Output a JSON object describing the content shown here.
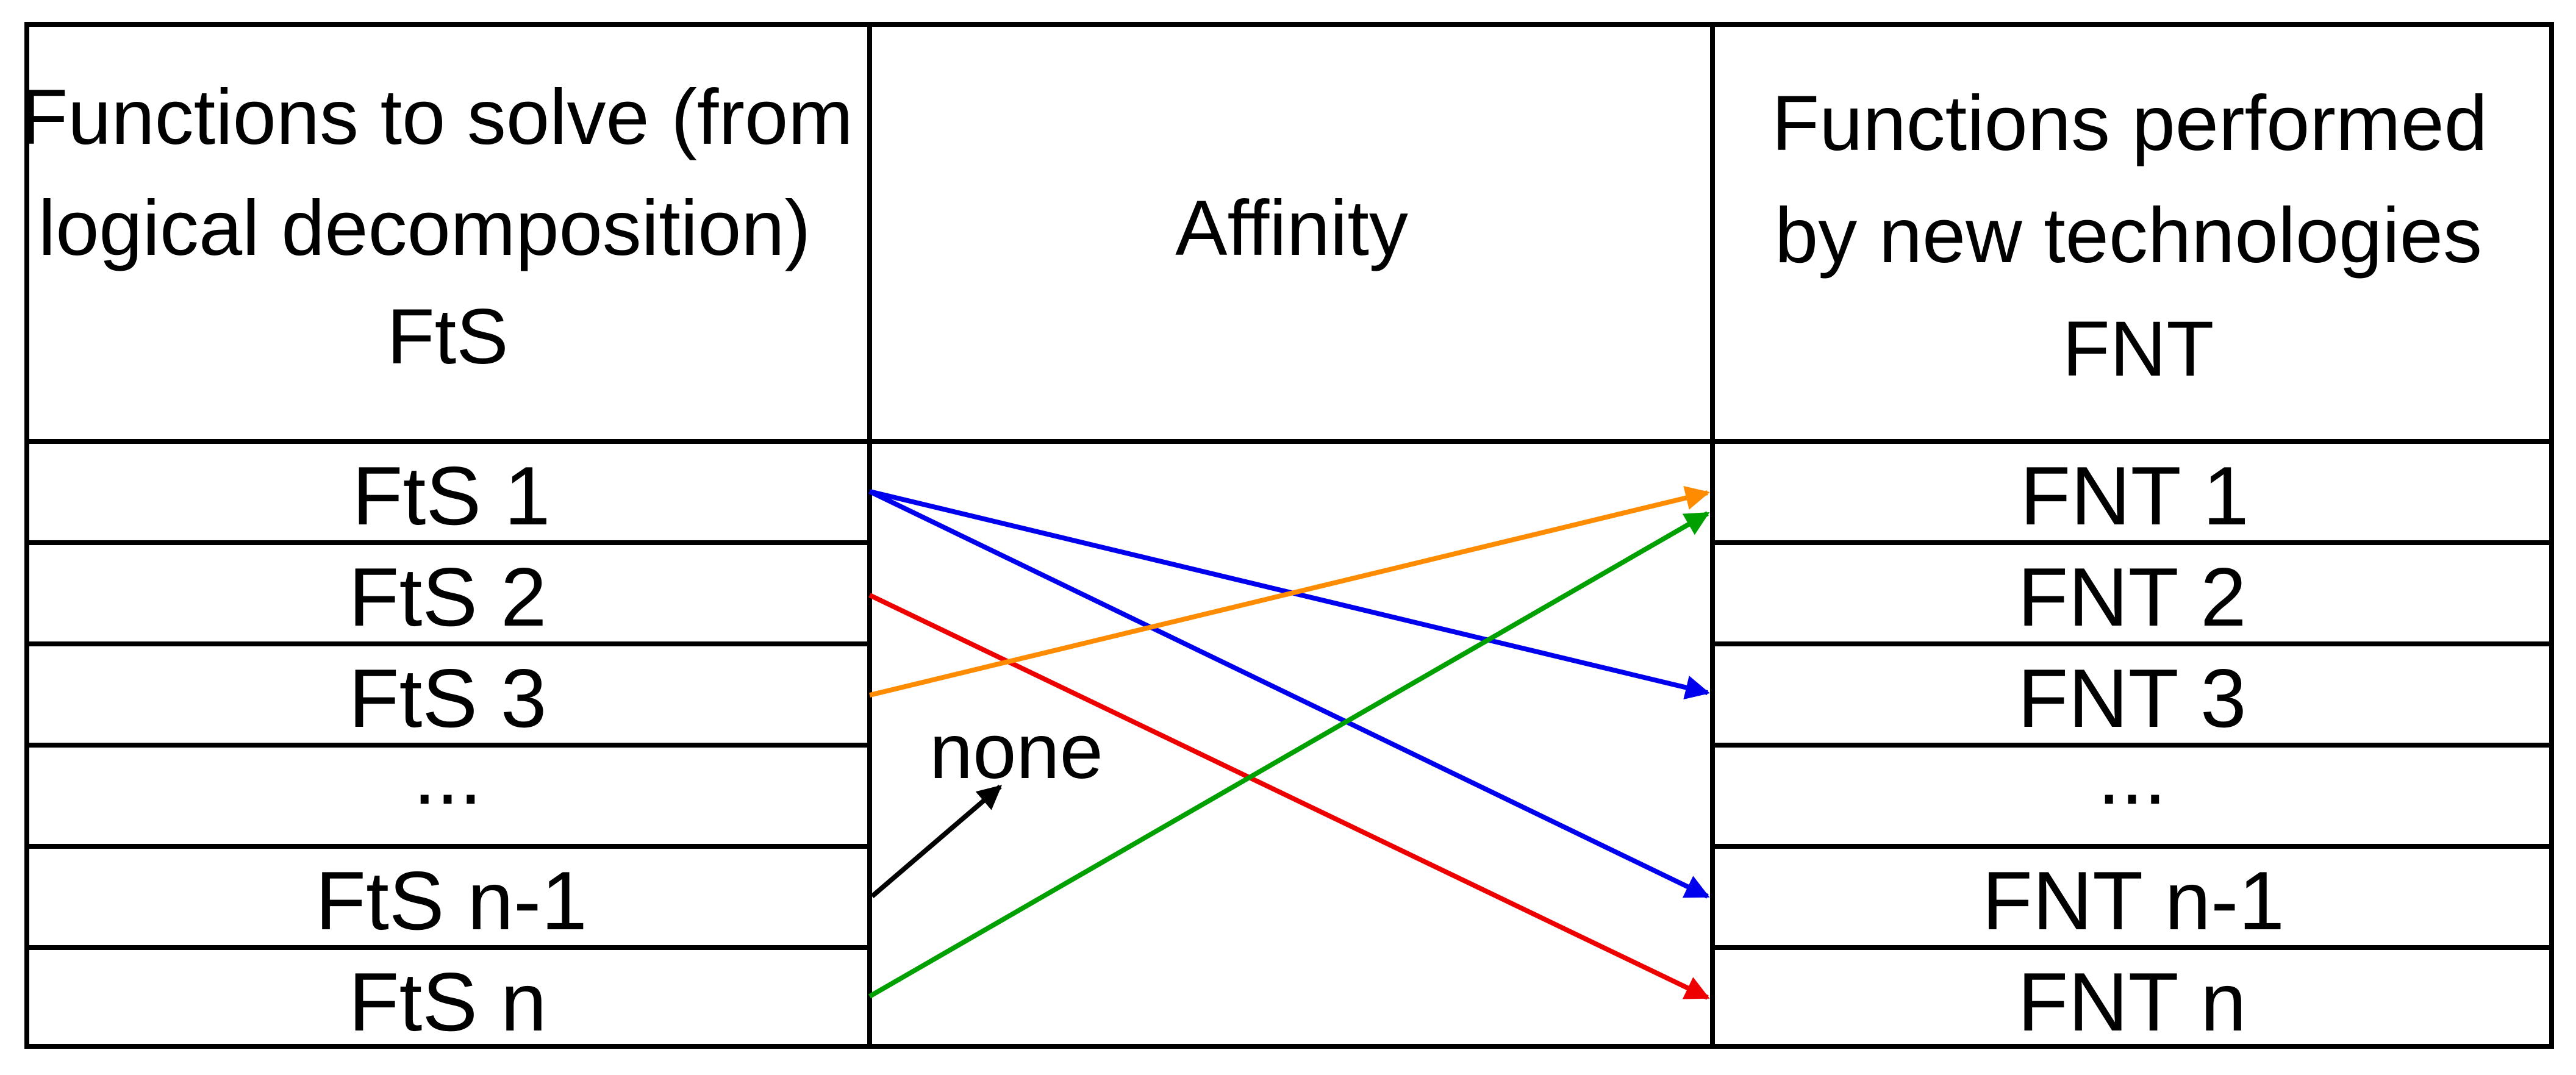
{
  "headers": {
    "left": [
      "Functions to solve (from",
      "logical decomposition)",
      "FtS"
    ],
    "middle": "Affinity",
    "right": [
      "Functions performed",
      "by new technologies",
      "FNT"
    ]
  },
  "left_rows": [
    "FtS 1",
    "FtS 2",
    "FtS 3",
    "...",
    "FtS n-1",
    "FtS n"
  ],
  "right_rows": [
    "FNT 1",
    "FNT 2",
    "FNT 3",
    "...",
    "FNT n-1",
    "FNT n"
  ],
  "annotation": "none",
  "connections": [
    {
      "from": "FtS 1",
      "to": "FNT 3",
      "color": "#0000ee"
    },
    {
      "from": "FtS 1",
      "to": "FNT n-1",
      "color": "#0000ee"
    },
    {
      "from": "FtS 2",
      "to": "FNT n",
      "color": "#ee0000"
    },
    {
      "from": "FtS 3",
      "to": "FNT 1",
      "color": "#ff8c00"
    },
    {
      "from": "FtS n",
      "to": "FNT 1",
      "color": "#00a000"
    },
    {
      "from": "FtS n-1",
      "to": "none",
      "color": "#000000"
    }
  ]
}
